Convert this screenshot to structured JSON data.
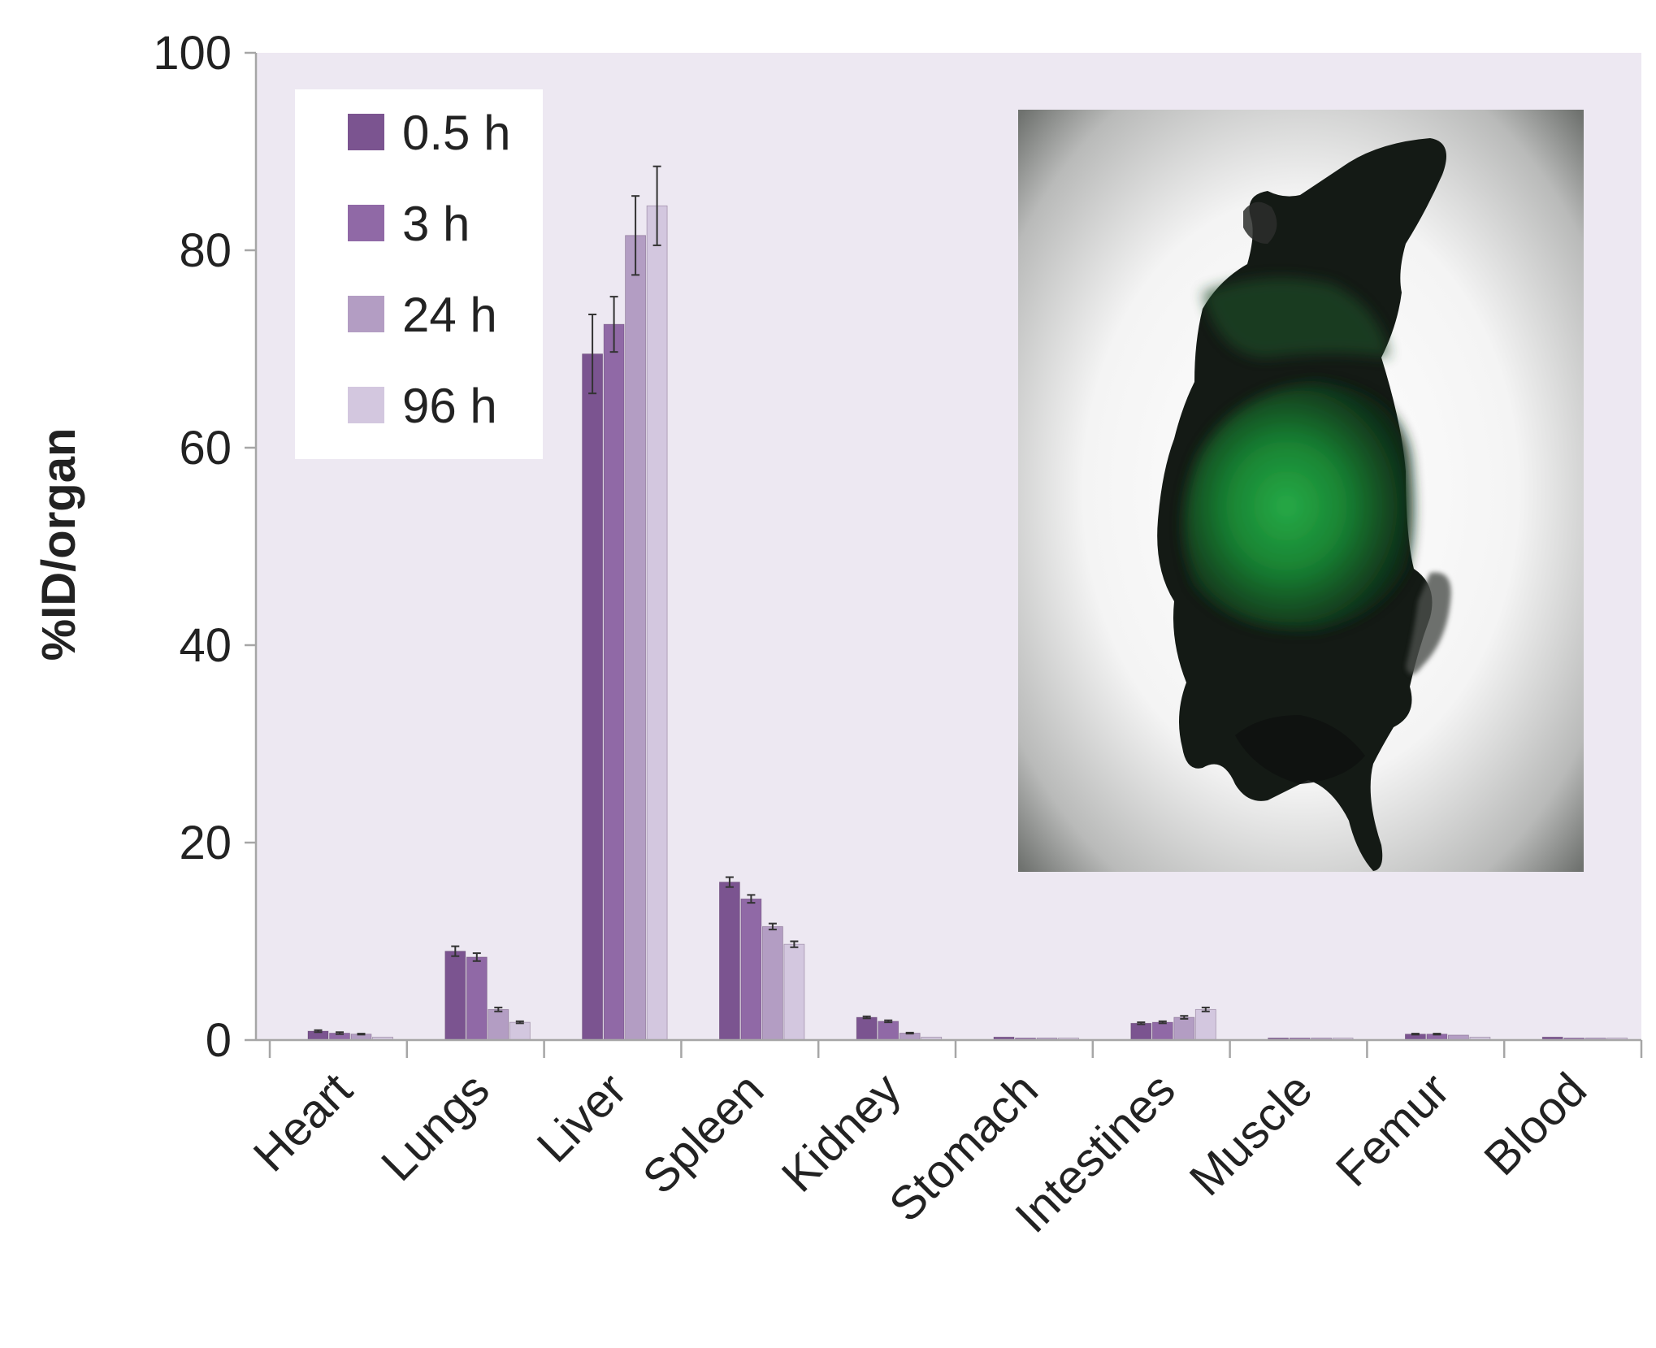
{
  "chart_data": {
    "type": "bar",
    "ylabel": "%ID/organ",
    "ylim": [
      0,
      100
    ],
    "yticks": [
      0,
      20,
      40,
      60,
      80,
      100
    ],
    "grid": false,
    "legend_position": "top-left",
    "categories": [
      "Heart",
      "Lungs",
      "Liver",
      "Spleen",
      "Kidney",
      "Stomach",
      "Intestines",
      "Muscle",
      "Femur",
      "Blood"
    ],
    "series": [
      {
        "name": "0.5 h",
        "color": "#7b5490",
        "values": [
          0.9,
          9.0,
          69.5,
          16.0,
          2.3,
          0.3,
          1.7,
          0.2,
          0.6,
          0.3
        ],
        "errors": [
          0.1,
          0.5,
          4.0,
          0.5,
          0.1,
          0.05,
          0.1,
          0.05,
          0.05,
          0.05
        ]
      },
      {
        "name": "3 h",
        "color": "#9069a6",
        "values": [
          0.7,
          8.4,
          72.5,
          14.3,
          1.9,
          0.2,
          1.8,
          0.2,
          0.6,
          0.2
        ],
        "errors": [
          0.1,
          0.4,
          2.8,
          0.4,
          0.1,
          0.05,
          0.1,
          0.05,
          0.05,
          0.05
        ]
      },
      {
        "name": "24 h",
        "color": "#b39dc3",
        "values": [
          0.6,
          3.1,
          81.5,
          11.5,
          0.7,
          0.2,
          2.3,
          0.2,
          0.5,
          0.2
        ],
        "errors": [
          0.05,
          0.2,
          4.0,
          0.3,
          0.05,
          0.05,
          0.15,
          0.05,
          0.05,
          0.05
        ]
      },
      {
        "name": "96 h",
        "color": "#d3c7df",
        "values": [
          0.3,
          1.8,
          84.5,
          9.7,
          0.3,
          0.2,
          3.1,
          0.2,
          0.3,
          0.2
        ],
        "errors": [
          0.05,
          0.1,
          4.0,
          0.3,
          0.05,
          0.05,
          0.2,
          0.05,
          0.05,
          0.05
        ]
      }
    ],
    "inset_image": {
      "subject": "mouse",
      "description": "fluorescence image of mouse"
    }
  },
  "colors": {
    "plot_background": "#ede8f2",
    "axis": "#a6a6a6",
    "text": "#222222",
    "error_bar": "#333333",
    "inset_bg": "#e8e8e8",
    "inset_glow": "#1f9a3c"
  }
}
